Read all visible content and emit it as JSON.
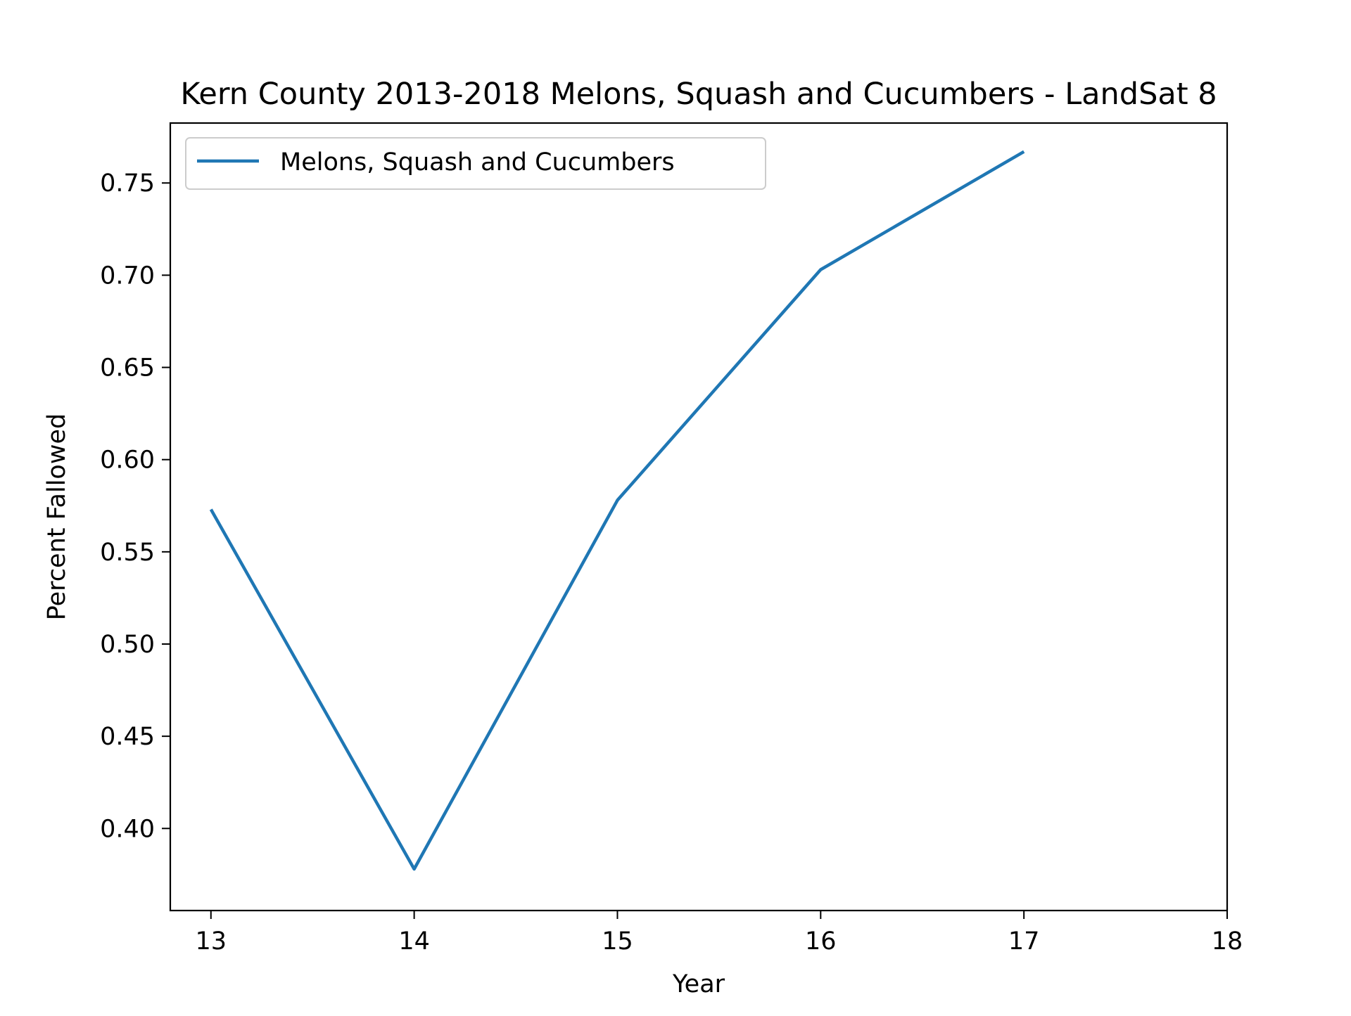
{
  "chart_data": {
    "type": "line",
    "title": "Kern County 2013-2018 Melons, Squash and Cucumbers - LandSat 8",
    "xlabel": "Year",
    "ylabel": "Percent Fallowed",
    "xlim": [
      12.8,
      18.0
    ],
    "ylim": [
      0.3555,
      0.7825
    ],
    "x_ticks": [
      13,
      14,
      15,
      16,
      17,
      18
    ],
    "x_tick_labels": [
      "13",
      "14",
      "15",
      "16",
      "17",
      "18"
    ],
    "y_ticks": [
      0.4,
      0.45,
      0.5,
      0.55,
      0.6,
      0.65,
      0.7,
      0.75
    ],
    "y_tick_labels": [
      "0.40",
      "0.45",
      "0.50",
      "0.55",
      "0.60",
      "0.65",
      "0.70",
      "0.75"
    ],
    "grid": false,
    "legend_position": "top-left",
    "series": [
      {
        "name": "Melons, Squash and Cucumbers",
        "color": "#1f77b4",
        "x": [
          13,
          14,
          15,
          16,
          17
        ],
        "y": [
          0.573,
          0.378,
          0.578,
          0.703,
          0.767
        ]
      }
    ]
  }
}
